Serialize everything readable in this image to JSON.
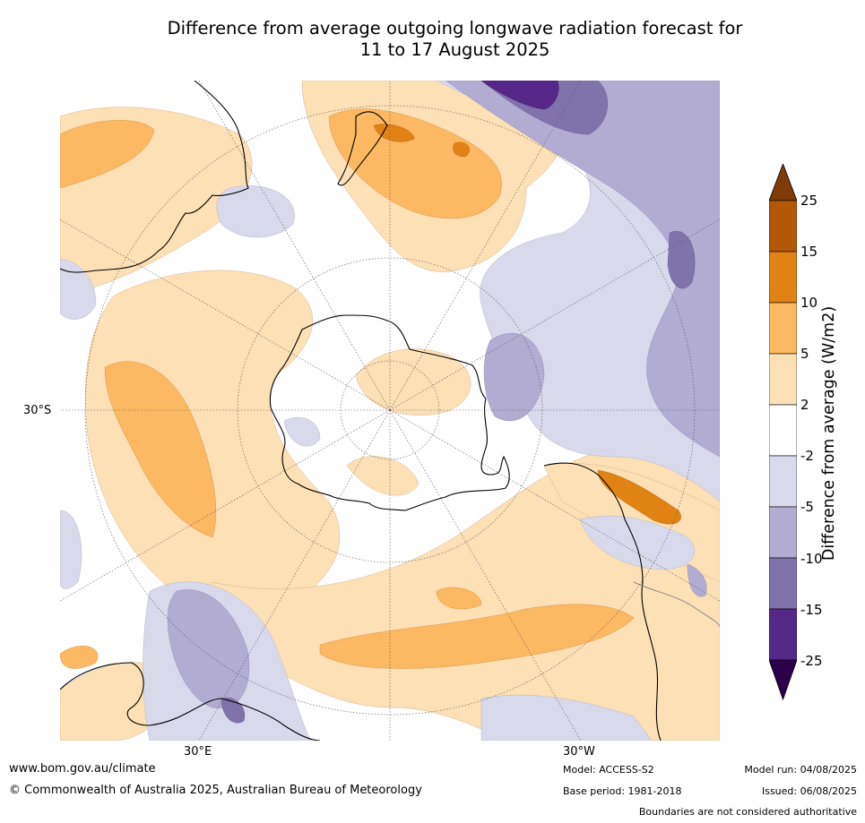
{
  "title_line1": "Difference from average outgoing longwave radiation forecast for",
  "title_line2": "11 to 17 August 2025",
  "map": {
    "lat_label": "30°S",
    "lon_label_left": "30°E",
    "lon_label_right": "30°W",
    "projection": "south-polar-stereographic",
    "colors": {
      "c25": "#7f3b08",
      "c15": "#b35806",
      "c10": "#e08214",
      "c5": "#fdb863",
      "c2": "#fee0b6",
      "c0": "#ffffff",
      "cn2": "#d8daeb",
      "cn5": "#b2abd2",
      "cn10": "#8073ac",
      "cn15": "#542788",
      "cn25": "#2d004b"
    }
  },
  "colorbar": {
    "label": "Difference from average (W/m2)",
    "ticks": [
      "25",
      "15",
      "10",
      "5",
      "2",
      "-2",
      "-5",
      "-10",
      "-15",
      "-25"
    ]
  },
  "footer": {
    "website": "www.bom.gov.au/climate",
    "copyright": "© Commonwealth of Australia 2025, Australian Bureau of Meteorology",
    "model": "Model: ACCESS-S2",
    "base_period": "Base period: 1981-2018",
    "model_run": "Model run: 04/08/2025",
    "issued": "Issued: 06/08/2025",
    "disclaimer": "Boundaries are not considered authoritative"
  }
}
